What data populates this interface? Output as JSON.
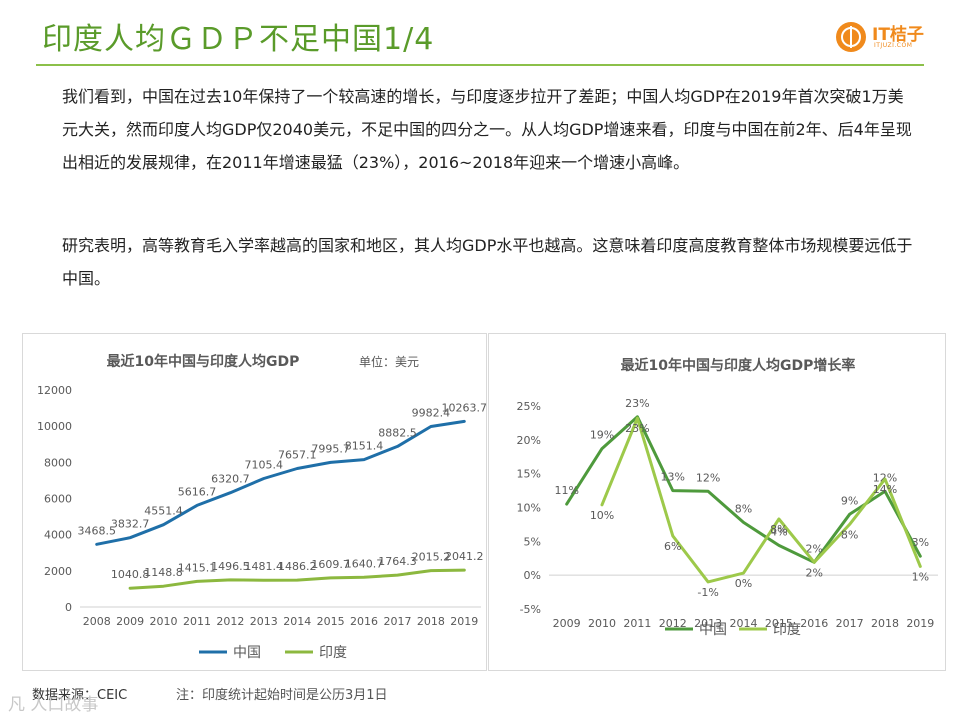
{
  "header": {
    "title": "印度人均ＧＤＰ不足中国1/4",
    "logo_name": "IT桔子",
    "logo_sub": "ITJUZI.COM"
  },
  "body_text": {
    "paragraph1": "我们看到，中国在过去10年保持了一个较高速的增长，与印度逐步拉开了差距；中国人均GDP在2019年首次突破1万美元大关，然而印度人均GDP仅2040美元，不足中国的四分之一。从人均GDP增速来看，印度与中国在前2年、后4年呈现出相近的发展规律，在2011年增速最猛（23%），2016~2018年迎来一个增速小高峰。",
    "paragraph2": "研究表明，高等教育毛入学率越高的国家和地区，其人均GDP水平也越高。这意味着印度高度教育整体市场规模要远低于中国。"
  },
  "colors": {
    "title_green": "#5a9b2a",
    "china_gdp": "#1f6fa8",
    "india_gdp": "#8cb83f",
    "china_growth": "#4e9a3c",
    "india_growth": "#9dc94a"
  },
  "chart_data": [
    {
      "type": "line",
      "title": "最近10年中国与印度人均GDP",
      "unit": "单位：美元",
      "categories": [
        "2008",
        "2009",
        "2010",
        "2011",
        "2012",
        "2013",
        "2014",
        "2015",
        "2016",
        "2017",
        "2018",
        "2019"
      ],
      "yticks": [
        "0",
        "2000",
        "4000",
        "6000",
        "8000",
        "10000",
        "12000"
      ],
      "ylim": [
        0,
        12000
      ],
      "series": [
        {
          "name": "中国",
          "values": [
            3468.5,
            3832.7,
            4551.4,
            5616.7,
            6320.7,
            7105.4,
            7657.1,
            7995.7,
            8151.4,
            8882.5,
            9982.4,
            10263.7
          ],
          "labels": [
            "3468.5",
            "3832.7",
            "4551.4",
            "5616.7",
            "6320.7",
            "7105.4",
            "7657.1",
            "7995.7",
            "8151.4",
            "8882.5",
            "9982.4",
            "10263.7"
          ]
        },
        {
          "name": "印度",
          "values": [
            null,
            1040.8,
            1148.8,
            1415.1,
            1496.5,
            1481.4,
            1486.2,
            1609.7,
            1640.7,
            1764.3,
            2015.2,
            2041.2
          ],
          "labels": [
            null,
            "1040.8",
            "1148.8",
            "1415.1",
            "1496.5",
            "1481.4",
            "1486.2",
            "1609.7",
            "1640.7",
            "1764.3",
            "2015.2",
            "2041.2"
          ]
        }
      ],
      "legend_position": "bottom"
    },
    {
      "type": "line",
      "title": "最近10年中国与印度人均GDP增长率",
      "categories": [
        "2009",
        "2010",
        "2011",
        "2012",
        "2013",
        "2014",
        "2015",
        "2016",
        "2017",
        "2018",
        "2019"
      ],
      "yticks": [
        "-5%",
        "0%",
        "5%",
        "10%",
        "15%",
        "20%",
        "25%"
      ],
      "ylim": [
        -5,
        25
      ],
      "series": [
        {
          "name": "中国",
          "values": [
            10.5,
            18.7,
            23.4,
            12.5,
            12.4,
            7.8,
            4.4,
            1.9,
            9.0,
            12.4,
            2.8
          ],
          "labels": [
            "11%",
            "19%",
            "23%",
            "13%",
            "12%",
            "8%",
            "4%",
            "2%",
            "9%",
            "12%",
            "3%"
          ]
        },
        {
          "name": "印度",
          "values": [
            null,
            10.4,
            23.2,
            5.8,
            -1.0,
            0.3,
            8.3,
            1.9,
            7.5,
            14.2,
            1.3
          ],
          "labels": [
            null,
            "10%",
            "23%",
            "6%",
            "-1%",
            "0%",
            "8%",
            "2%",
            "8%",
            "14%",
            "1%"
          ]
        }
      ],
      "legend_position": "bottom"
    }
  ],
  "footer": {
    "source": "数据来源：CEIC",
    "note": "注：印度统计起始时间是公历3月1日",
    "watermark": "凡 人口故事"
  }
}
